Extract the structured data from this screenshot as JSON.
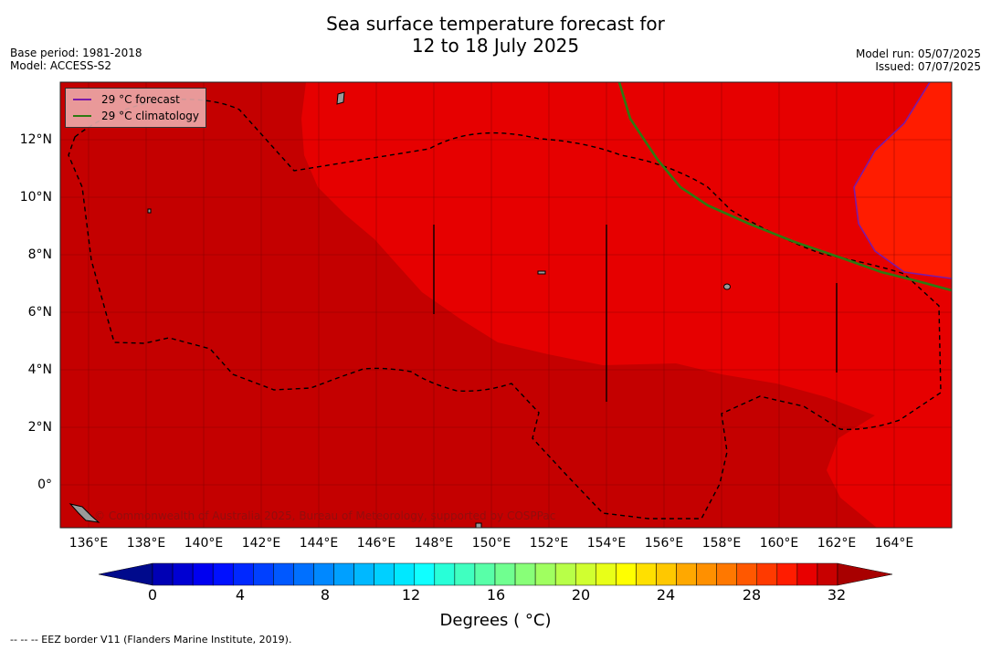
{
  "title": {
    "line1": "Sea surface temperature forecast for",
    "line2": "12 to 18 July 2025"
  },
  "meta_left": {
    "base_period": "Base period: 1981-2018",
    "model": "Model: ACCESS-S2"
  },
  "meta_right": {
    "model_run": "Model run: 05/07/2025",
    "issued": "Issued: 07/07/2025"
  },
  "legend": {
    "forecast": {
      "label": "29 °C  forecast",
      "color": "#7a1aa8"
    },
    "climatology": {
      "label": "29 °C  climatology",
      "color": "#2e7a12"
    }
  },
  "lat_labels": [
    "12°N",
    "10°N",
    "8°N",
    "6°N",
    "4°N",
    "2°N",
    "0°"
  ],
  "lon_labels": [
    "136°E",
    "138°E",
    "140°E",
    "142°E",
    "144°E",
    "146°E",
    "148°E",
    "150°E",
    "152°E",
    "154°E",
    "156°E",
    "158°E",
    "160°E",
    "162°E",
    "164°E"
  ],
  "colorbar": {
    "ticks": [
      "0",
      "4",
      "8",
      "12",
      "16",
      "20",
      "24",
      "28",
      "32"
    ],
    "title": "Degrees ( °C)",
    "colors": [
      "#000a8c",
      "#0000b4",
      "#0000d2",
      "#0000f0",
      "#0010ff",
      "#0028ff",
      "#0040ff",
      "#0058ff",
      "#0070ff",
      "#0088ff",
      "#00a0ff",
      "#00b8ff",
      "#00d0ff",
      "#00e8ff",
      "#10ffff",
      "#28ffd8",
      "#40ffc0",
      "#58ffa8",
      "#70ff90",
      "#88ff78",
      "#a0ff60",
      "#b8ff48",
      "#d0ff30",
      "#e8ff18",
      "#ffff00",
      "#ffe000",
      "#ffc800",
      "#ffa800",
      "#ff9000",
      "#ff7800",
      "#ff5800",
      "#ff3a00",
      "#ff1c00",
      "#e80000",
      "#c80000",
      "#a80000"
    ]
  },
  "colors": {
    "sst_28_29": "#c40000",
    "sst_29_30": "#e60000",
    "sst_30_31": "#ff1c00",
    "grid": "#7a0000"
  },
  "copyright": "© Commonwealth of Australia 2025, Bureau of Meteorology, supported by COSPPac",
  "footnote": "--  --  -- EEZ border V11 (Flanders Marine Institute, 2019)."
}
